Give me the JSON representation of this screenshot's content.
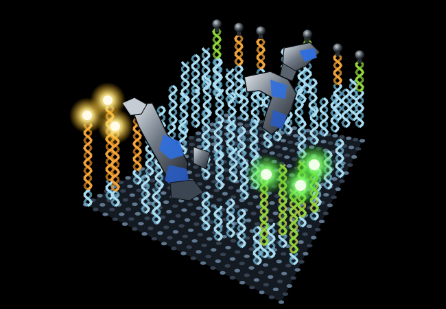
{
  "scene": {
    "colors": {
      "background": "#000000",
      "lattice": "#3c4a5c",
      "lattice_hi": "#6f8aa4",
      "helix_blue": "#a9dcf0",
      "helix_orange": "#f2a43a",
      "helix_green": "#8fd43b",
      "helix_lime": "#c6e64a",
      "bulb_yellow": "#ffe680",
      "bulb_green": "#7dff6a",
      "bulb_dark": "#2a2e33",
      "robot_metal": "#8e99a6",
      "robot_blue": "#2f6fe0"
    },
    "icons": [
      "dna-helix-icon",
      "light-bulb-icon",
      "robot-arm-icon"
    ]
  }
}
